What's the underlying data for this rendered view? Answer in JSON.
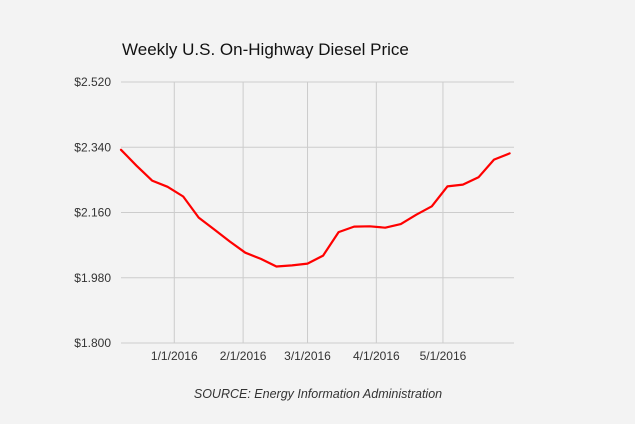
{
  "chart_data": {
    "type": "line",
    "title": "Weekly U.S. On-Highway Diesel Price",
    "source": "SOURCE: Energy Information Administration",
    "xlabel": "",
    "ylabel": "",
    "x_tick_labels": [
      "1/1/2016",
      "2/1/2016",
      "3/1/2016",
      "4/1/2016",
      "5/1/2016"
    ],
    "y_tick_labels": [
      "$1.800",
      "$1.980",
      "$2.160",
      "$2.340",
      "$2.520"
    ],
    "ylim": [
      1.8,
      2.52
    ],
    "xlim": [
      "2015-12-08",
      "2016-06-02"
    ],
    "grid": true,
    "color": "#ff0000",
    "series": [
      {
        "x": [
          "2015-12-08",
          "2015-12-15",
          "2015-12-22",
          "2015-12-29",
          "2016-01-05",
          "2016-01-12",
          "2016-01-19",
          "2016-01-26",
          "2016-02-02",
          "2016-02-09",
          "2016-02-16",
          "2016-02-23",
          "2016-03-01",
          "2016-03-08",
          "2016-03-15",
          "2016-03-22",
          "2016-03-29",
          "2016-04-05",
          "2016-04-12",
          "2016-04-19",
          "2016-04-26",
          "2016-05-03",
          "2016-05-10",
          "2016-05-17",
          "2016-05-24",
          "2016-05-31"
        ],
        "values": [
          2.333,
          2.289,
          2.248,
          2.231,
          2.204,
          2.146,
          2.113,
          2.08,
          2.049,
          2.032,
          2.011,
          2.014,
          2.019,
          2.041,
          2.106,
          2.121,
          2.122,
          2.118,
          2.128,
          2.154,
          2.177,
          2.232,
          2.237,
          2.257,
          2.306,
          2.323
        ]
      }
    ]
  }
}
